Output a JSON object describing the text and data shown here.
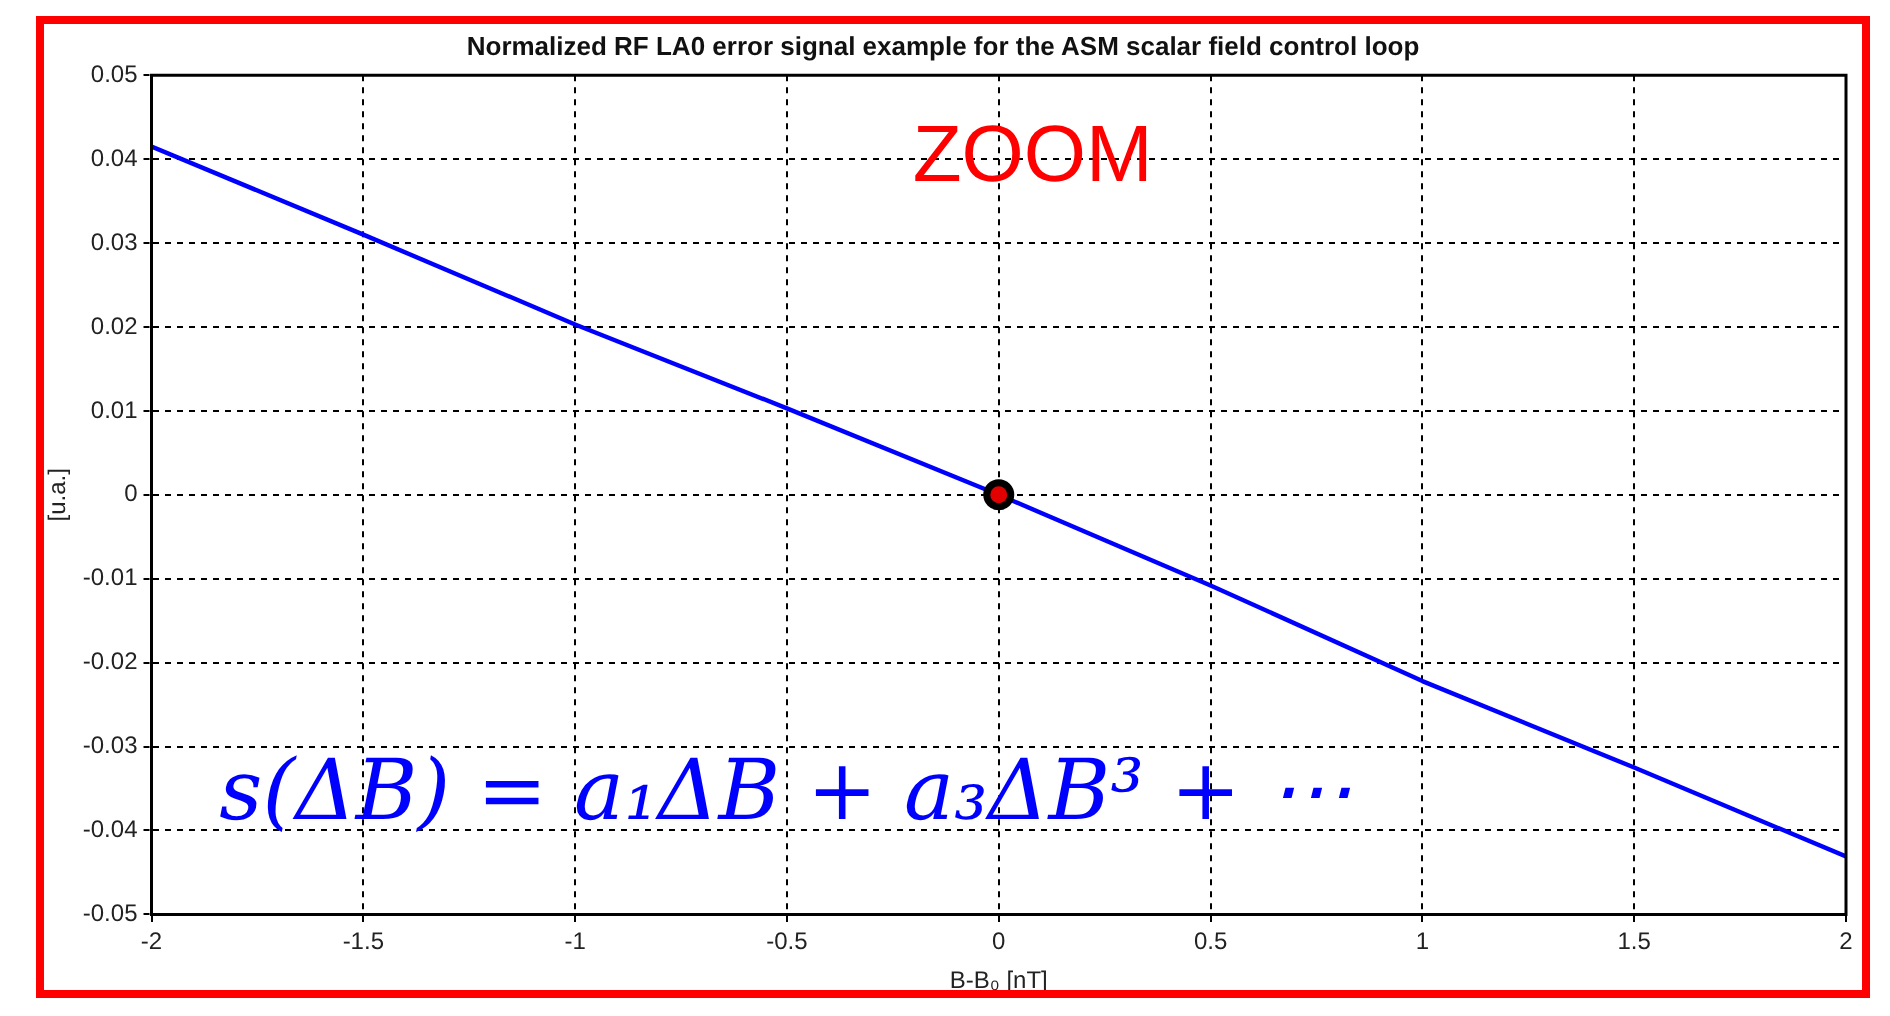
{
  "chart_data": {
    "type": "line",
    "title": "Normalized RF LA0 error signal example for the ASM scalar field control loop",
    "xlabel": "B-B₀ [nT]",
    "ylabel": "[u.a.]",
    "annotations": [
      "ZOOM",
      "s(ΔB) = a₁ΔB + a₃ΔB³ + ⋯"
    ],
    "series": [
      {
        "color": "#0000ff",
        "x": [
          -2,
          -1.5,
          -1,
          -0.5,
          0,
          0.5,
          1,
          1.5,
          2
        ],
        "values": [
          0.0415,
          0.031,
          0.0203,
          0.0103,
          0,
          -0.0108,
          -0.0222,
          -0.0325,
          -0.0431
        ]
      },
      {
        "type": "scatter",
        "color": "#000000",
        "marker": "circle",
        "x": [
          0
        ],
        "values": [
          0
        ]
      }
    ],
    "xlim": [
      -2,
      2
    ],
    "xticks": [
      -2,
      -1.5,
      -1,
      -0.5,
      0,
      0.5,
      1,
      1.5,
      2
    ],
    "ylim": [
      -0.05,
      0.05
    ],
    "yticks": [
      -0.05,
      -0.04,
      -0.03,
      -0.02,
      -0.01,
      0,
      0.01,
      0.02,
      0.03,
      0.04,
      0.05
    ],
    "grid": true,
    "line_style": "solid"
  }
}
